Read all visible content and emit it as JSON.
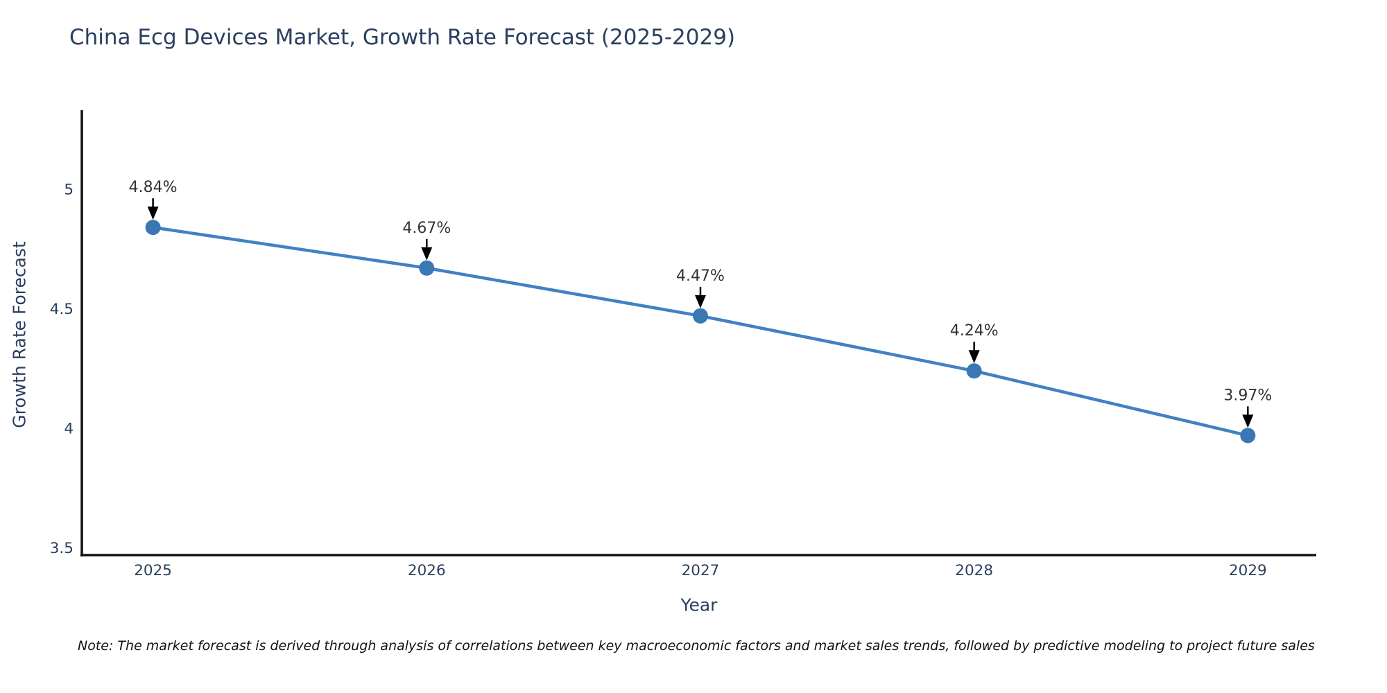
{
  "chart_data": {
    "type": "line",
    "title": "China Ecg Devices Market, Growth Rate Forecast (2025-2029)",
    "xlabel": "Year",
    "ylabel": "Growth Rate Forecast",
    "x": [
      2025,
      2026,
      2027,
      2028,
      2029
    ],
    "values": [
      4.84,
      4.67,
      4.47,
      4.24,
      3.97
    ],
    "point_labels": [
      "4.84%",
      "4.67%",
      "4.47%",
      "4.24%",
      "3.97%"
    ],
    "xtick_labels": [
      "2025",
      "2026",
      "2027",
      "2028",
      "2029"
    ],
    "yticks": [
      3.5,
      4,
      4.5,
      5
    ],
    "ytick_labels": [
      "3.5",
      "4",
      "4.5",
      "5"
    ],
    "ylim": [
      3.47,
      5.33
    ],
    "xlim": [
      2024.74,
      2029.25
    ],
    "grid": false,
    "legend": false,
    "colors": {
      "line": "#4181c2",
      "marker": "#3a78b4",
      "axis_line": "#111111",
      "tick_text": "#2a3f5f",
      "title_text": "#2a3f5f",
      "annotation_text": "#333333",
      "arrow": "#000000"
    }
  },
  "footnote": "Note: The market forecast is derived through analysis of correlations between key macroeconomic factors and market sales trends, followed by predictive modeling to project future sales"
}
